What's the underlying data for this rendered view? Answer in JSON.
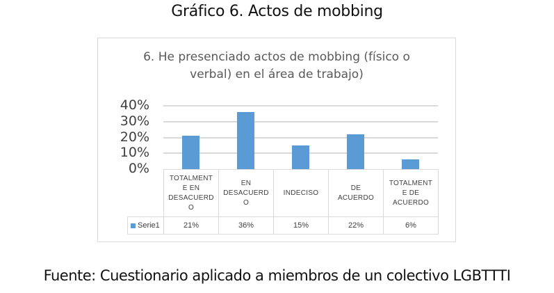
{
  "figure": {
    "title": "Gráfico 6. Actos de mobbing",
    "source": "Fuente: Cuestionario aplicado a miembros de un colectivo LGBTTTI"
  },
  "chart": {
    "title_line1": "6. He presenciado actos de mobbing (físico o",
    "title_line2": "verbal) en el área de trabajo)",
    "yticks": [
      "40%",
      "30%",
      "20%",
      "10%",
      "0%"
    ],
    "legend_label": "Serie1",
    "categories": [
      {
        "label_lines": [
          "TOTALMENT",
          "E EN",
          "DESACUERD",
          "O"
        ],
        "value_label": "21%"
      },
      {
        "label_lines": [
          "EN",
          "DESACUERD",
          "O"
        ],
        "value_label": "36%"
      },
      {
        "label_lines": [
          "INDECISO"
        ],
        "value_label": "15%"
      },
      {
        "label_lines": [
          "DE",
          "ACUERDO"
        ],
        "value_label": "22%"
      },
      {
        "label_lines": [
          "TOTALMENT",
          "E DE",
          "ACUERDO"
        ],
        "value_label": "6%"
      }
    ],
    "colors": {
      "bar": "#5b9bd5",
      "grid": "#d9d9d9",
      "text": "#595959"
    }
  },
  "chart_data": {
    "type": "bar",
    "title": "6. He presenciado actos de mobbing (físico o verbal) en el área de trabajo)",
    "categories": [
      "TOTALMENTE EN DESACUERDO",
      "EN DESACUERDO",
      "INDECISO",
      "DE ACUERDO",
      "TOTALMENTE DE ACUERDO"
    ],
    "series": [
      {
        "name": "Serie1",
        "values": [
          21,
          36,
          15,
          22,
          6
        ]
      }
    ],
    "value_labels": [
      "21%",
      "36%",
      "15%",
      "22%",
      "6%"
    ],
    "xlabel": "",
    "ylabel": "",
    "ylim": [
      0,
      40
    ],
    "yticks": [
      "0%",
      "10%",
      "20%",
      "30%",
      "40%"
    ],
    "grid": true,
    "legend_position": "data-table"
  }
}
